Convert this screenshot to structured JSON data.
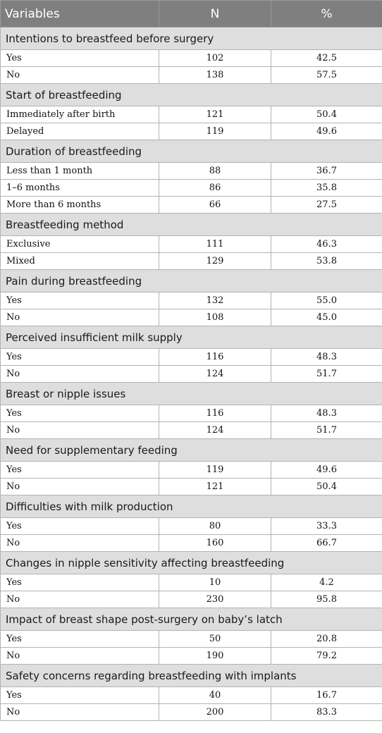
{
  "table": {
    "headers": [
      "Variables",
      "N",
      "%"
    ],
    "sections": [
      {
        "title": "Intentions to breastfeed before surgery",
        "rows": [
          {
            "label": "Yes",
            "n": "102",
            "pct": "42.5"
          },
          {
            "label": "No",
            "n": "138",
            "pct": "57.5"
          }
        ]
      },
      {
        "title": "Start of breastfeeding",
        "rows": [
          {
            "label": "Immediately after birth",
            "n": "121",
            "pct": "50.4"
          },
          {
            "label": "Delayed",
            "n": "119",
            "pct": "49.6"
          }
        ]
      },
      {
        "title": "Duration of breastfeeding",
        "rows": [
          {
            "label": "Less than 1 month",
            "n": "88",
            "pct": "36.7"
          },
          {
            "label": "1–6 months",
            "n": "86",
            "pct": "35.8"
          },
          {
            "label": "More than 6 months",
            "n": "66",
            "pct": "27.5"
          }
        ]
      },
      {
        "title": "Breastfeeding method",
        "rows": [
          {
            "label": "Exclusive",
            "n": "111",
            "pct": "46.3"
          },
          {
            "label": "Mixed",
            "n": "129",
            "pct": "53.8"
          }
        ]
      },
      {
        "title": "Pain during breastfeeding",
        "rows": [
          {
            "label": "Yes",
            "n": "132",
            "pct": "55.0"
          },
          {
            "label": "No",
            "n": "108",
            "pct": "45.0"
          }
        ]
      },
      {
        "title": "Perceived insufficient milk supply",
        "rows": [
          {
            "label": "Yes",
            "n": "116",
            "pct": "48.3"
          },
          {
            "label": "No",
            "n": "124",
            "pct": "51.7"
          }
        ]
      },
      {
        "title": "Breast or nipple issues",
        "rows": [
          {
            "label": "Yes",
            "n": "116",
            "pct": "48.3"
          },
          {
            "label": "No",
            "n": "124",
            "pct": "51.7"
          }
        ]
      },
      {
        "title": "Need for supplementary feeding",
        "rows": [
          {
            "label": "Yes",
            "n": "119",
            "pct": "49.6"
          },
          {
            "label": "No",
            "n": "121",
            "pct": "50.4"
          }
        ]
      },
      {
        "title": "Difficulties with milk production",
        "rows": [
          {
            "label": "Yes",
            "n": "80",
            "pct": "33.3"
          },
          {
            "label": "No",
            "n": "160",
            "pct": "66.7"
          }
        ]
      },
      {
        "title": "Changes in nipple sensitivity affecting breastfeeding",
        "rows": [
          {
            "label": "Yes",
            "n": "10",
            "pct": "4.2"
          },
          {
            "label": "No",
            "n": "230",
            "pct": "95.8"
          }
        ]
      },
      {
        "title": "Impact of breast shape post-surgery on baby’s latch",
        "rows": [
          {
            "label": "Yes",
            "n": "50",
            "pct": "20.8"
          },
          {
            "label": "No",
            "n": "190",
            "pct": "79.2"
          }
        ]
      },
      {
        "title": "Safety concerns regarding breastfeeding with implants",
        "rows": [
          {
            "label": "Yes",
            "n": "40",
            "pct": "16.7"
          },
          {
            "label": "No",
            "n": "200",
            "pct": "83.3"
          }
        ]
      }
    ]
  }
}
